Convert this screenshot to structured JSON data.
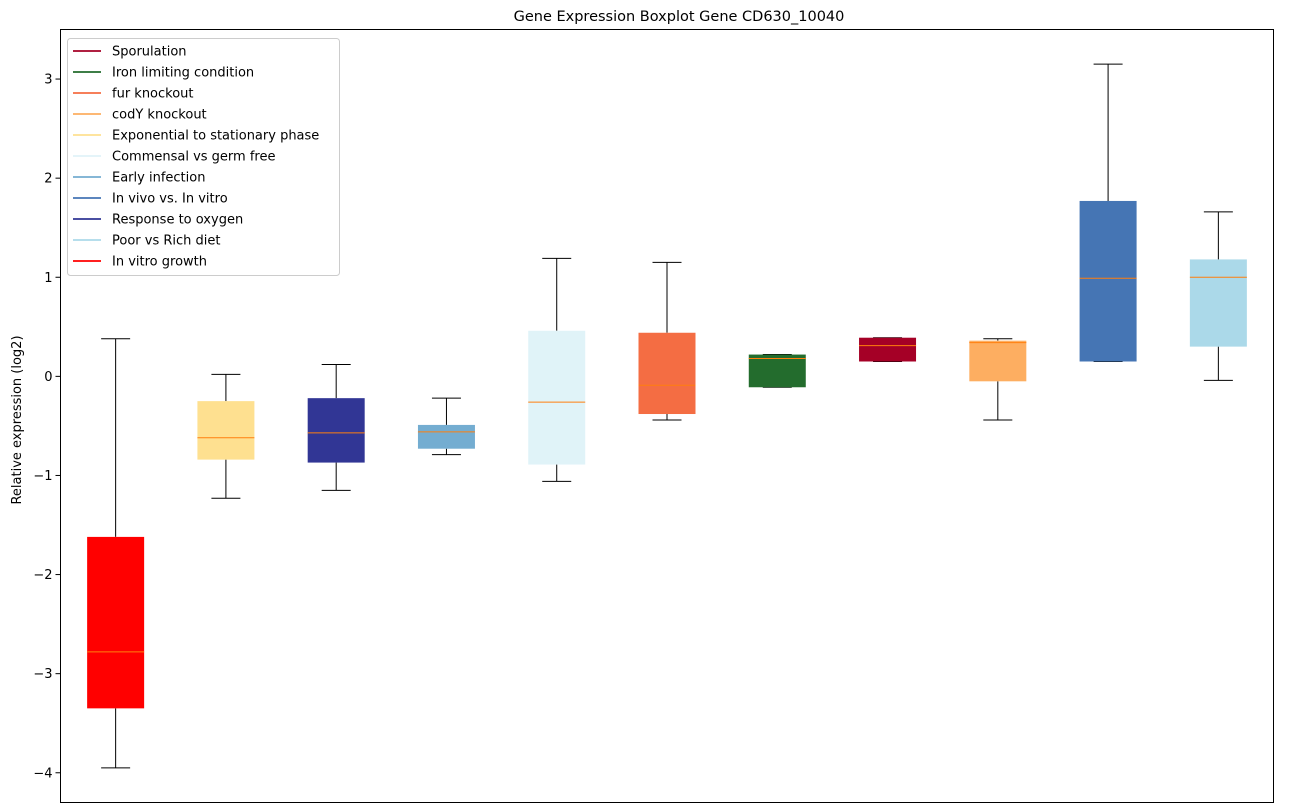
{
  "chart_data": {
    "type": "boxplot",
    "title": "Gene Expression Boxplot Gene CD630_10040",
    "xlabel": "",
    "ylabel": "Relative expression (log2)",
    "ylim": [
      -4.3,
      3.5
    ],
    "yticks": [
      -4,
      -3,
      -2,
      -1,
      0,
      1,
      2,
      3
    ],
    "ytick_labels": [
      "−4",
      "−3",
      "−2",
      "−1",
      "0",
      "1",
      "2",
      "3"
    ],
    "grid": false,
    "legend_position": "top-left",
    "median_color": "#ff7f0e",
    "whisker_color": "#000000",
    "legend": [
      {
        "label": "Sporulation",
        "color": "#a50026"
      },
      {
        "label": "Iron limiting condition",
        "color": "#236c2d"
      },
      {
        "label": "fur knockout",
        "color": "#f46d43"
      },
      {
        "label": "codY knockout",
        "color": "#fdae61"
      },
      {
        "label": "Exponential to stationary phase",
        "color": "#fee090"
      },
      {
        "label": "Commensal vs germ free",
        "color": "#e0f3f8"
      },
      {
        "label": "Early infection",
        "color": "#74add1"
      },
      {
        "label": "In vivo vs. In vitro",
        "color": "#4575b4"
      },
      {
        "label": "Response to oxygen",
        "color": "#313695"
      },
      {
        "label": "Poor vs Rich diet",
        "color": "#abd9e9"
      },
      {
        "label": "In vitro growth",
        "color": "#ff0000"
      }
    ],
    "series": [
      {
        "name": "In vitro growth",
        "color": "#ff0000",
        "whisker_low": -3.95,
        "q1": -3.35,
        "median": -2.78,
        "q3": -1.62,
        "whisker_high": 0.38
      },
      {
        "name": "Exponential to stationary phase",
        "color": "#fee090",
        "whisker_low": -1.23,
        "q1": -0.84,
        "median": -0.62,
        "q3": -0.25,
        "whisker_high": 0.02
      },
      {
        "name": "Response to oxygen",
        "color": "#313695",
        "whisker_low": -1.15,
        "q1": -0.87,
        "median": -0.57,
        "q3": -0.22,
        "whisker_high": 0.12
      },
      {
        "name": "Early infection",
        "color": "#74add1",
        "whisker_low": -0.79,
        "q1": -0.73,
        "median": -0.56,
        "q3": -0.49,
        "whisker_high": -0.22
      },
      {
        "name": "Commensal vs germ free",
        "color": "#e0f3f8",
        "whisker_low": -1.06,
        "q1": -0.89,
        "median": -0.26,
        "q3": 0.46,
        "whisker_high": 1.19
      },
      {
        "name": "fur knockout",
        "color": "#f46d43",
        "whisker_low": -0.44,
        "q1": -0.38,
        "median": -0.09,
        "q3": 0.44,
        "whisker_high": 1.15
      },
      {
        "name": "Iron limiting condition",
        "color": "#236c2d",
        "whisker_low": -0.11,
        "q1": -0.11,
        "median": 0.18,
        "q3": 0.22,
        "whisker_high": 0.22
      },
      {
        "name": "Sporulation",
        "color": "#a50026",
        "whisker_low": 0.15,
        "q1": 0.15,
        "median": 0.31,
        "q3": 0.39,
        "whisker_high": 0.39
      },
      {
        "name": "codY knockout",
        "color": "#fdae61",
        "whisker_low": -0.44,
        "q1": -0.05,
        "median": 0.34,
        "q3": 0.36,
        "whisker_high": 0.38
      },
      {
        "name": "In vivo vs. In vitro",
        "color": "#4575b4",
        "whisker_low": 0.15,
        "q1": 0.15,
        "median": 0.99,
        "q3": 1.77,
        "whisker_high": 3.15
      },
      {
        "name": "Poor vs Rich diet",
        "color": "#abd9e9",
        "whisker_low": -0.04,
        "q1": 0.3,
        "median": 1.0,
        "q3": 1.18,
        "whisker_high": 1.66
      }
    ]
  }
}
